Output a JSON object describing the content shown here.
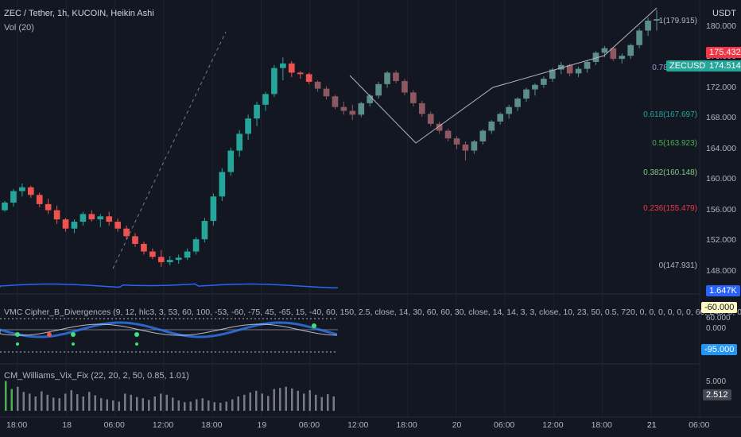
{
  "header": {
    "title": "ZEC / Tether, 1h, KUCOIN, Heikin Ashi",
    "volume_label": "Vol (20)",
    "currency": "USDT"
  },
  "price_axis": {
    "ticks": [
      "180.000",
      "176.000",
      "172.000",
      "168.000",
      "164.000",
      "160.000",
      "156.000",
      "152.000",
      "148.000"
    ]
  },
  "price_boxes": {
    "last_price": "175.432",
    "last_price_color": "#f23645",
    "symbol": "ZECUSDT",
    "symbol_price": "174.514",
    "symbol_color": "#26a69a",
    "volume_value": "1.647K",
    "volume_color": "#2962ff"
  },
  "fib": {
    "levels": [
      {
        "label": "1(179.915)",
        "value": 179.915,
        "color": "#b2b5be",
        "fill": "#2a2e39"
      },
      {
        "label": "0.786(173.8)",
        "value": 173.8,
        "color": "#8fa5d6",
        "fill": "#1f2a44"
      },
      {
        "label": "0.618(167.697)",
        "value": 167.697,
        "color": "#26a69a",
        "fill": "#1d3a3a"
      },
      {
        "label": "0.5(163.923)",
        "value": 163.923,
        "color": "#4caf50",
        "fill": "#1e3a25"
      },
      {
        "label": "0.382(160.148)",
        "value": 160.148,
        "color": "#81c784",
        "fill": "#1e3322"
      },
      {
        "label": "0.236(155.479)",
        "value": 155.479,
        "color": "#f23645",
        "fill": "#3b1d27"
      },
      {
        "label": "0(147.931)",
        "value": 147.931,
        "color": "#b2b5be",
        "fill": "#3b1d27"
      }
    ],
    "top_fill": "#24345e"
  },
  "vmc": {
    "title": "VMC Cipher_B_Divergences (9, 12, hlc3, 3, 53, 60, 100, -53, -60, -75, 45, -65, 15, -40, 60, 150, 2.5, close, 14, 30, 60, 60, 30, close, 14, 14, 3, 3, close, 10, 23, 50, 0.5, 720, 0, 0, 0, 0, 0, 0, 60, 240, 0, 0, 240)",
    "axis_ticks": [
      "60.000",
      "0.000"
    ],
    "box_high": "-60.000",
    "box_low": "-95.000"
  },
  "wvf": {
    "title": "CM_Williams_Vix_Fix (22, 20, 2, 50, 0.85, 1.01)",
    "axis_tick": "5.000",
    "value": "2.512",
    "values": [
      5.2,
      3.8,
      4.2,
      3.3,
      3.0,
      2.5,
      3.4,
      2.8,
      2.3,
      2.2,
      3.0,
      3.6,
      2.9,
      2.5,
      3.3,
      2.7,
      2.2,
      2.0,
      1.8,
      1.6,
      3.0,
      2.8,
      2.4,
      2.2,
      1.9,
      2.5,
      3.0,
      2.8,
      2.3,
      1.8,
      1.5,
      1.6,
      2.0,
      2.2,
      1.8,
      1.5,
      1.4,
      1.6,
      2.0,
      2.5,
      2.8,
      3.2,
      3.5,
      3.0,
      2.6,
      3.8,
      4.0,
      4.2,
      3.9,
      3.5,
      3.0,
      3.6,
      2.8,
      2.4,
      2.9,
      2.5
    ]
  },
  "time_axis": {
    "ticks": [
      "18:00",
      "18",
      "06:00",
      "12:00",
      "18:00",
      "19",
      "06:00",
      "12:00",
      "18:00",
      "20",
      "06:00",
      "12:00",
      "18:00",
      "21",
      "06:00"
    ]
  },
  "chart_data": {
    "type": "candlestick",
    "title": "ZEC / Tether, 1h, KUCOIN, Heikin Ashi",
    "ylim": [
      146.5,
      183.5
    ],
    "candles": [
      [
        156.0,
        157.2,
        155.8,
        157.0
      ],
      [
        157.0,
        158.8,
        156.5,
        158.5
      ],
      [
        158.5,
        159.5,
        157.8,
        159.0
      ],
      [
        159.0,
        159.2,
        157.6,
        158.0
      ],
      [
        158.0,
        158.3,
        156.4,
        156.8
      ],
      [
        156.8,
        157.5,
        155.5,
        156.0
      ],
      [
        156.0,
        156.6,
        154.2,
        154.8
      ],
      [
        154.8,
        155.0,
        153.2,
        153.6
      ],
      [
        153.6,
        154.8,
        153.0,
        154.5
      ],
      [
        154.5,
        155.8,
        154.0,
        155.5
      ],
      [
        155.5,
        156.0,
        154.5,
        154.8
      ],
      [
        154.8,
        155.5,
        153.8,
        155.2
      ],
      [
        155.2,
        155.8,
        154.0,
        154.5
      ],
      [
        154.5,
        154.9,
        153.2,
        153.6
      ],
      [
        153.6,
        154.0,
        152.2,
        152.6
      ],
      [
        152.6,
        153.0,
        151.2,
        151.6
      ],
      [
        151.6,
        151.9,
        150.2,
        150.6
      ],
      [
        150.6,
        151.0,
        149.6,
        149.9
      ],
      [
        149.9,
        150.8,
        148.6,
        149.2
      ],
      [
        149.2,
        150.0,
        148.8,
        149.5
      ],
      [
        149.5,
        150.2,
        149.0,
        149.8
      ],
      [
        149.8,
        151.0,
        149.5,
        150.6
      ],
      [
        150.6,
        152.5,
        150.2,
        152.2
      ],
      [
        152.2,
        155.0,
        151.8,
        154.6
      ],
      [
        154.6,
        158.2,
        154.0,
        157.8
      ],
      [
        157.8,
        161.5,
        157.2,
        161.0
      ],
      [
        161.0,
        164.2,
        160.5,
        163.8
      ],
      [
        163.8,
        166.5,
        163.0,
        166.0
      ],
      [
        166.0,
        168.5,
        165.2,
        168.0
      ],
      [
        168.0,
        170.2,
        167.0,
        169.8
      ],
      [
        169.8,
        171.5,
        169.0,
        171.2
      ],
      [
        171.2,
        175.0,
        170.8,
        174.6
      ],
      [
        174.6,
        176.0,
        173.0,
        175.2
      ],
      [
        175.2,
        175.5,
        173.4,
        174.0
      ],
      [
        174.0,
        174.2,
        173.2,
        173.8
      ],
      [
        173.8,
        174.0,
        172.5,
        172.8
      ],
      [
        172.8,
        173.0,
        171.5,
        171.9
      ],
      [
        171.9,
        172.2,
        170.5,
        170.9
      ],
      [
        170.9,
        171.1,
        169.2,
        169.5
      ],
      [
        169.5,
        170.2,
        168.5,
        169.0
      ],
      [
        169.0,
        169.8,
        167.8,
        168.5
      ],
      [
        168.5,
        170.2,
        168.2,
        170.0
      ],
      [
        170.0,
        171.2,
        169.6,
        171.0
      ],
      [
        171.0,
        172.8,
        170.6,
        172.5
      ],
      [
        172.5,
        174.2,
        172.0,
        174.0
      ],
      [
        174.0,
        174.3,
        172.6,
        172.9
      ],
      [
        172.9,
        173.2,
        171.0,
        171.4
      ],
      [
        171.4,
        171.7,
        169.6,
        170.0
      ],
      [
        170.0,
        170.3,
        168.2,
        168.6
      ],
      [
        168.6,
        168.9,
        167.0,
        167.3
      ],
      [
        167.3,
        167.6,
        166.0,
        166.4
      ],
      [
        166.4,
        166.7,
        165.0,
        165.4
      ],
      [
        165.4,
        165.7,
        164.0,
        164.6
      ],
      [
        164.6,
        165.0,
        162.5,
        163.8
      ],
      [
        163.8,
        165.2,
        163.4,
        165.0
      ],
      [
        165.0,
        166.6,
        164.6,
        166.4
      ],
      [
        166.4,
        167.8,
        166.0,
        167.6
      ],
      [
        167.6,
        168.8,
        167.2,
        168.6
      ],
      [
        168.6,
        169.8,
        168.0,
        169.5
      ],
      [
        169.5,
        170.8,
        169.0,
        170.6
      ],
      [
        170.6,
        172.0,
        170.2,
        171.8
      ],
      [
        171.8,
        172.6,
        171.0,
        172.4
      ],
      [
        172.4,
        173.5,
        172.0,
        173.2
      ],
      [
        173.2,
        174.6,
        172.8,
        174.4
      ],
      [
        174.4,
        175.4,
        173.8,
        175.0
      ],
      [
        175.0,
        175.2,
        173.5,
        173.9
      ],
      [
        173.9,
        174.8,
        173.4,
        174.5
      ],
      [
        174.5,
        175.6,
        174.0,
        175.4
      ],
      [
        175.4,
        176.8,
        175.0,
        176.6
      ],
      [
        176.6,
        177.5,
        176.0,
        177.2
      ],
      [
        177.2,
        177.4,
        175.5,
        175.8
      ],
      [
        175.8,
        176.5,
        175.2,
        176.2
      ],
      [
        176.2,
        177.8,
        175.8,
        177.6
      ],
      [
        177.6,
        179.8,
        177.2,
        179.5
      ],
      [
        179.5,
        181.2,
        178.8,
        180.8
      ],
      [
        180.8,
        182.2,
        179.5,
        181.0
      ]
    ]
  }
}
